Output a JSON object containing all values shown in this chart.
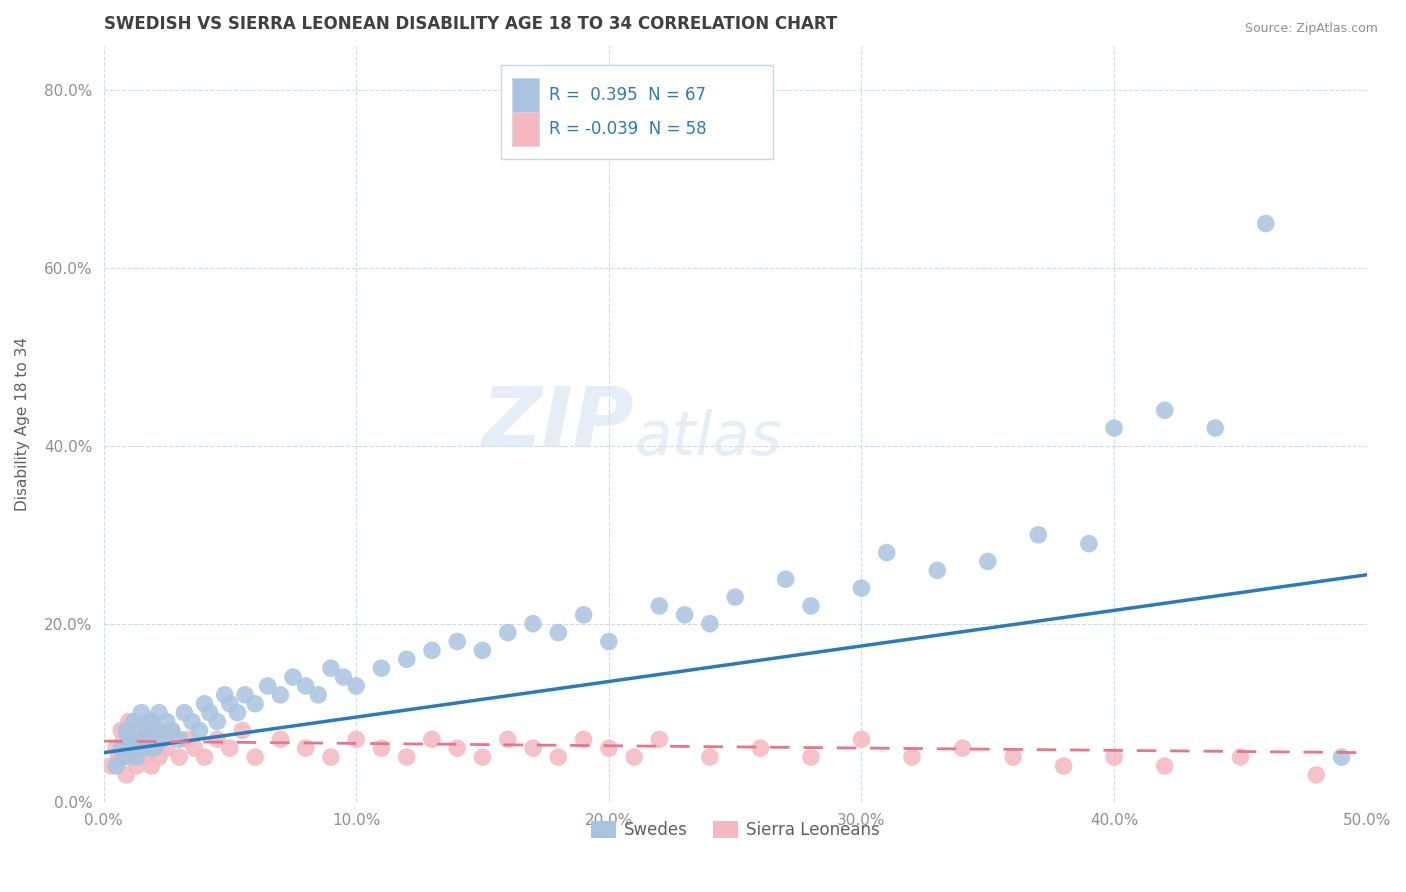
{
  "title": "SWEDISH VS SIERRA LEONEAN DISABILITY AGE 18 TO 34 CORRELATION CHART",
  "source": "Source: ZipAtlas.com",
  "xlabel": "",
  "ylabel": "Disability Age 18 to 34",
  "xlim": [
    0.0,
    0.5
  ],
  "ylim": [
    0.0,
    0.85
  ],
  "xticks": [
    0.0,
    0.1,
    0.2,
    0.3,
    0.4,
    0.5
  ],
  "yticks": [
    0.0,
    0.2,
    0.4,
    0.6,
    0.8
  ],
  "xticklabels": [
    "0.0%",
    "10.0%",
    "20.0%",
    "30.0%",
    "40.0%",
    "50.0%"
  ],
  "yticklabels": [
    "0.0%",
    "20.0%",
    "40.0%",
    "60.0%",
    "80.0%"
  ],
  "legend_blue_label": "Swedes",
  "legend_pink_label": "Sierra Leoneans",
  "r_blue": "0.395",
  "n_blue": "67",
  "r_pink": "-0.039",
  "n_pink": "58",
  "blue_color": "#a8c4e0",
  "pink_color": "#f4b8c1",
  "blue_line_color": "#2b7bba",
  "pink_line_color": "#e8758a",
  "title_color": "#404040",
  "axis_label_color": "#606060",
  "tick_color": "#909090",
  "grid_color": "#c8d8e8",
  "source_color": "#909090",
  "background_color": "#ffffff",
  "watermark_zip": "ZIP",
  "watermark_atlas": "atlas",
  "legend_box_color": "#f0f4f8",
  "legend_border_color": "#c8d8e8",
  "swedes_x": [
    0.005,
    0.007,
    0.008,
    0.009,
    0.01,
    0.011,
    0.012,
    0.013,
    0.014,
    0.015,
    0.016,
    0.017,
    0.018,
    0.019,
    0.02,
    0.021,
    0.022,
    0.023,
    0.025,
    0.027,
    0.03,
    0.032,
    0.035,
    0.038,
    0.04,
    0.042,
    0.045,
    0.048,
    0.05,
    0.053,
    0.056,
    0.06,
    0.065,
    0.07,
    0.075,
    0.08,
    0.085,
    0.09,
    0.095,
    0.1,
    0.11,
    0.12,
    0.13,
    0.14,
    0.15,
    0.16,
    0.17,
    0.18,
    0.19,
    0.2,
    0.22,
    0.23,
    0.24,
    0.25,
    0.27,
    0.28,
    0.3,
    0.31,
    0.33,
    0.35,
    0.37,
    0.39,
    0.4,
    0.42,
    0.44,
    0.46,
    0.49
  ],
  "swedes_y": [
    0.04,
    0.06,
    0.05,
    0.08,
    0.07,
    0.06,
    0.09,
    0.05,
    0.07,
    0.1,
    0.06,
    0.08,
    0.07,
    0.09,
    0.06,
    0.08,
    0.1,
    0.07,
    0.09,
    0.08,
    0.07,
    0.1,
    0.09,
    0.08,
    0.11,
    0.1,
    0.09,
    0.12,
    0.11,
    0.1,
    0.12,
    0.11,
    0.13,
    0.12,
    0.14,
    0.13,
    0.12,
    0.15,
    0.14,
    0.13,
    0.15,
    0.16,
    0.17,
    0.18,
    0.17,
    0.19,
    0.2,
    0.19,
    0.21,
    0.18,
    0.22,
    0.21,
    0.2,
    0.23,
    0.25,
    0.22,
    0.24,
    0.28,
    0.26,
    0.27,
    0.3,
    0.29,
    0.42,
    0.44,
    0.42,
    0.65,
    0.05
  ],
  "sierra_x": [
    0.003,
    0.005,
    0.006,
    0.007,
    0.008,
    0.009,
    0.01,
    0.011,
    0.012,
    0.013,
    0.014,
    0.015,
    0.016,
    0.017,
    0.018,
    0.019,
    0.02,
    0.021,
    0.022,
    0.023,
    0.025,
    0.027,
    0.03,
    0.033,
    0.036,
    0.04,
    0.045,
    0.05,
    0.055,
    0.06,
    0.07,
    0.08,
    0.09,
    0.1,
    0.11,
    0.12,
    0.13,
    0.14,
    0.15,
    0.16,
    0.17,
    0.18,
    0.19,
    0.2,
    0.21,
    0.22,
    0.24,
    0.26,
    0.28,
    0.3,
    0.32,
    0.34,
    0.36,
    0.38,
    0.4,
    0.42,
    0.45,
    0.48
  ],
  "sierra_y": [
    0.04,
    0.06,
    0.05,
    0.08,
    0.07,
    0.03,
    0.09,
    0.05,
    0.07,
    0.04,
    0.06,
    0.08,
    0.05,
    0.07,
    0.09,
    0.04,
    0.06,
    0.08,
    0.05,
    0.07,
    0.06,
    0.08,
    0.05,
    0.07,
    0.06,
    0.05,
    0.07,
    0.06,
    0.08,
    0.05,
    0.07,
    0.06,
    0.05,
    0.07,
    0.06,
    0.05,
    0.07,
    0.06,
    0.05,
    0.07,
    0.06,
    0.05,
    0.07,
    0.06,
    0.05,
    0.07,
    0.05,
    0.06,
    0.05,
    0.07,
    0.05,
    0.06,
    0.05,
    0.04,
    0.05,
    0.04,
    0.05,
    0.03
  ],
  "blue_trend_x": [
    0.0,
    0.5
  ],
  "blue_trend_y": [
    0.055,
    0.255
  ],
  "pink_trend_x": [
    0.0,
    0.5
  ],
  "pink_trend_y": [
    0.068,
    0.055
  ]
}
